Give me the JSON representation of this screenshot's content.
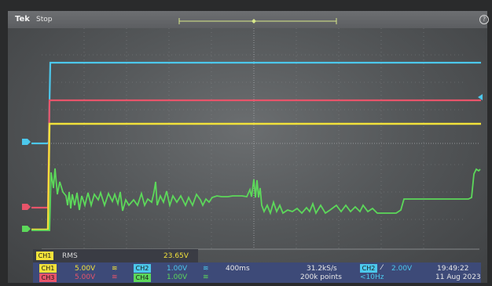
{
  "header": {
    "brand": "Tek",
    "status": "Stop",
    "help_icon": "help-icon"
  },
  "colors": {
    "ch1": "#f2e23a",
    "ch2": "#4cc8ec",
    "ch3": "#e8546a",
    "ch4": "#5cd85a",
    "panel": "#3d4a78"
  },
  "measurement": {
    "channel": "CH1",
    "type": "RMS",
    "value": "23.65V"
  },
  "channels": [
    {
      "tag": "CH1",
      "scale": "5.00V",
      "coupling_icon": "bandwidth-icon"
    },
    {
      "tag": "CH2",
      "scale": "1.00V",
      "coupling_icon": "bandwidth-icon"
    },
    {
      "tag": "CH3",
      "scale": "5.00V",
      "coupling_icon": "bandwidth-icon"
    },
    {
      "tag": "CH4",
      "scale": "1.00V",
      "coupling_icon": "bandwidth-icon"
    }
  ],
  "timebase": {
    "per_div": "400ms",
    "sample_rate": "31.2kS/s",
    "record_length": "200k points"
  },
  "trigger": {
    "source": "CH2",
    "level": "2.00V",
    "frequency": "<10Hz"
  },
  "clock": {
    "time": "19:49:22",
    "date": "11 Aug 2023"
  }
}
